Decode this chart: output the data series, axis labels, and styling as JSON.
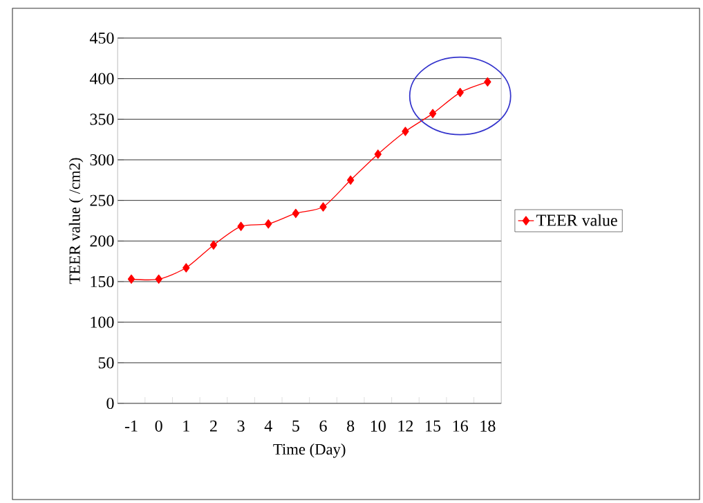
{
  "chart_data": {
    "type": "line",
    "xlabel": "Time (Day)",
    "ylabel": "TEER value (   /cm2)",
    "categories": [
      "-1",
      "0",
      "1",
      "2",
      "3",
      "4",
      "5",
      "6",
      "8",
      "10",
      "12",
      "15",
      "16",
      "18"
    ],
    "series": [
      {
        "name": "TEER value",
        "color": "#ff0000",
        "values": [
          153,
          153,
          167,
          195,
          218,
          221,
          234,
          242,
          275,
          307,
          335,
          357,
          383,
          396
        ]
      }
    ],
    "ylim": [
      0,
      450
    ],
    "yticks": [
      0,
      50,
      100,
      150,
      200,
      250,
      300,
      350,
      400,
      450
    ],
    "grid": "y",
    "legend": "right",
    "marker": "diamond",
    "line_style": "solid"
  }
}
